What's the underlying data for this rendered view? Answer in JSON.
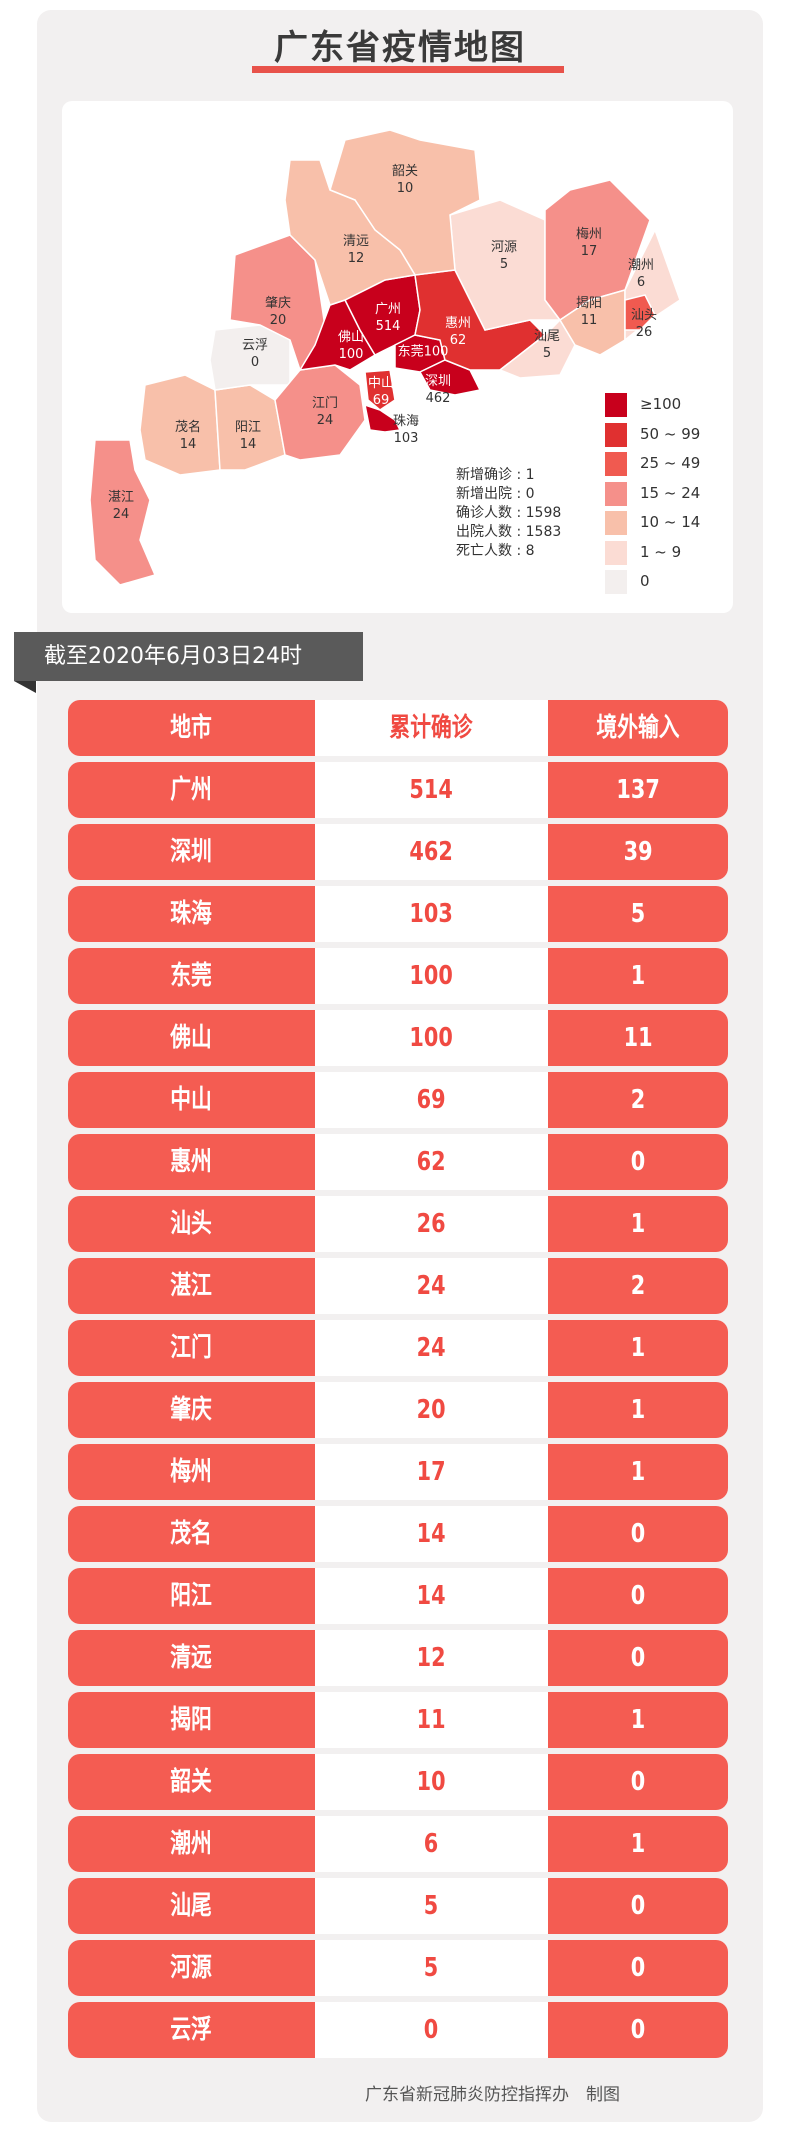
{
  "title": "广东省疫情地图",
  "map": {
    "regions": [
      {
        "name": "韶关",
        "value": "10"
      },
      {
        "name": "清远",
        "value": "12"
      },
      {
        "name": "河源",
        "value": "5"
      },
      {
        "name": "梅州",
        "value": "17"
      },
      {
        "name": "潮州",
        "value": "6"
      },
      {
        "name": "揭阳",
        "value": "11"
      },
      {
        "name": "汕头",
        "value": "26"
      },
      {
        "name": "肇庆",
        "value": "20"
      },
      {
        "name": "广州",
        "value": "514"
      },
      {
        "name": "惠州",
        "value": "62"
      },
      {
        "name": "佛山",
        "value": "100"
      },
      {
        "name": "东莞",
        "value": "100"
      },
      {
        "name": "云浮",
        "value": "0"
      },
      {
        "name": "汕尾",
        "value": "5"
      },
      {
        "name": "深圳",
        "value": "462"
      },
      {
        "name": "中山",
        "value": "69"
      },
      {
        "name": "江门",
        "value": "24"
      },
      {
        "name": "珠海",
        "value": "103"
      },
      {
        "name": "茂名",
        "value": "14"
      },
      {
        "name": "阳江",
        "value": "14"
      },
      {
        "name": "湛江",
        "value": "24"
      }
    ],
    "stats": [
      {
        "label": "新增确诊",
        "value": "1"
      },
      {
        "label": "新增出院",
        "value": "0"
      },
      {
        "label": "确诊人数",
        "value": "1598"
      },
      {
        "label": "出院人数",
        "value": "1583"
      },
      {
        "label": "死亡人数",
        "value": "8"
      }
    ],
    "legend": [
      {
        "label": "≥100",
        "color": "#c8001c"
      },
      {
        "label": "50 ~ 99",
        "color": "#e03030"
      },
      {
        "label": "25 ~ 49",
        "color": "#f05a50"
      },
      {
        "label": "15 ~ 24",
        "color": "#f5908a"
      },
      {
        "label": "10 ~ 14",
        "color": "#f8c0aa"
      },
      {
        "label": "1 ~ 9",
        "color": "#fbdcd4"
      },
      {
        "label": "0",
        "color": "#f3efee"
      }
    ]
  },
  "banner": "截至2020年6月03日24时",
  "table": {
    "headers": [
      "地市",
      "累计确诊",
      "境外输入"
    ],
    "rows": [
      [
        "广州",
        "514",
        "137"
      ],
      [
        "深圳",
        "462",
        "39"
      ],
      [
        "珠海",
        "103",
        "5"
      ],
      [
        "东莞",
        "100",
        "1"
      ],
      [
        "佛山",
        "100",
        "11"
      ],
      [
        "中山",
        "69",
        "2"
      ],
      [
        "惠州",
        "62",
        "0"
      ],
      [
        "汕头",
        "26",
        "1"
      ],
      [
        "湛江",
        "24",
        "2"
      ],
      [
        "江门",
        "24",
        "1"
      ],
      [
        "肇庆",
        "20",
        "1"
      ],
      [
        "梅州",
        "17",
        "1"
      ],
      [
        "茂名",
        "14",
        "0"
      ],
      [
        "阳江",
        "14",
        "0"
      ],
      [
        "清远",
        "12",
        "0"
      ],
      [
        "揭阳",
        "11",
        "1"
      ],
      [
        "韶关",
        "10",
        "0"
      ],
      [
        "潮州",
        "6",
        "1"
      ],
      [
        "汕尾",
        "5",
        "0"
      ],
      [
        "河源",
        "5",
        "0"
      ],
      [
        "云浮",
        "0",
        "0"
      ]
    ]
  },
  "footer": "广东省新冠肺炎防控指挥办　制图"
}
